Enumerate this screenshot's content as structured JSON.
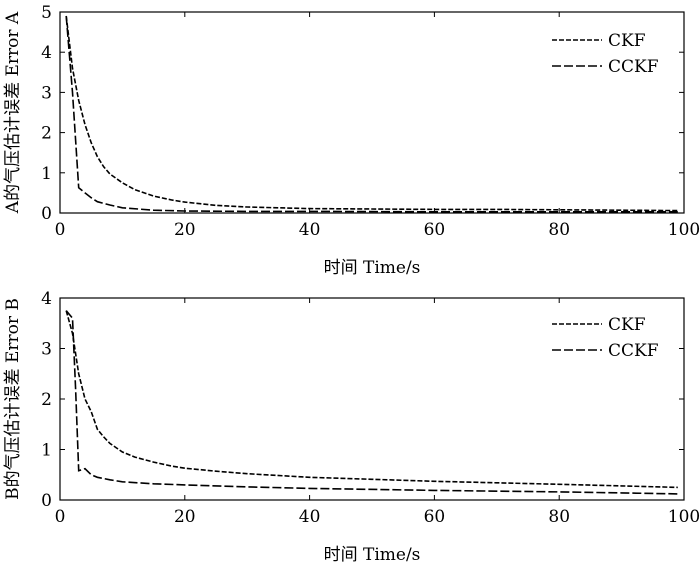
{
  "chart_data": [
    {
      "type": "line",
      "title": "",
      "xlabel": "时间 Time/s",
      "ylabel": "A的气压估计误差 Error A",
      "xlim": [
        0,
        100
      ],
      "ylim": [
        0,
        5
      ],
      "xticks": [
        "0",
        "20",
        "40",
        "60",
        "80",
        "100"
      ],
      "yticks": [
        "0",
        "1",
        "2",
        "3",
        "4",
        "5"
      ],
      "grid": false,
      "legend_position": "top-right",
      "series": [
        {
          "name": "CKF",
          "x": [
            1,
            2,
            3,
            4,
            5,
            6,
            7,
            8,
            10,
            12,
            15,
            18,
            20,
            25,
            30,
            40,
            50,
            60,
            70,
            80,
            90,
            99
          ],
          "y": [
            4.9,
            3.6,
            2.8,
            2.2,
            1.75,
            1.4,
            1.15,
            0.97,
            0.75,
            0.58,
            0.42,
            0.32,
            0.27,
            0.19,
            0.15,
            0.11,
            0.1,
            0.09,
            0.09,
            0.08,
            0.07,
            0.06
          ]
        },
        {
          "name": "CCKF",
          "x": [
            1,
            2,
            3,
            4,
            5,
            6,
            8,
            10,
            15,
            20,
            30,
            40,
            60,
            80,
            99
          ],
          "y": [
            4.9,
            3.0,
            0.63,
            0.5,
            0.38,
            0.28,
            0.2,
            0.13,
            0.07,
            0.05,
            0.04,
            0.04,
            0.03,
            0.03,
            0.03
          ]
        }
      ]
    },
    {
      "type": "line",
      "title": "",
      "xlabel": "时间 Time/s",
      "ylabel": "B的气压估计误差 Error B",
      "xlim": [
        0,
        100
      ],
      "ylim": [
        0,
        4
      ],
      "xticks": [
        "0",
        "20",
        "40",
        "60",
        "80",
        "100"
      ],
      "yticks": [
        "0",
        "1",
        "2",
        "3",
        "4"
      ],
      "grid": false,
      "legend_position": "top-right",
      "series": [
        {
          "name": "CKF",
          "x": [
            1,
            2,
            3,
            4,
            5,
            6,
            7,
            8,
            10,
            12,
            15,
            18,
            20,
            25,
            30,
            40,
            50,
            60,
            70,
            80,
            90,
            99
          ],
          "y": [
            3.75,
            3.3,
            2.5,
            2.0,
            1.75,
            1.4,
            1.25,
            1.12,
            0.95,
            0.85,
            0.75,
            0.67,
            0.63,
            0.57,
            0.52,
            0.45,
            0.41,
            0.37,
            0.34,
            0.31,
            0.28,
            0.25
          ]
        },
        {
          "name": "CCKF",
          "x": [
            1,
            2,
            2.5,
            3,
            4,
            5,
            6,
            8,
            10,
            15,
            20,
            30,
            40,
            60,
            80,
            90,
            99
          ],
          "y": [
            3.75,
            3.6,
            2.2,
            0.58,
            0.62,
            0.5,
            0.45,
            0.4,
            0.36,
            0.32,
            0.3,
            0.26,
            0.23,
            0.19,
            0.16,
            0.14,
            0.12
          ]
        }
      ]
    }
  ]
}
